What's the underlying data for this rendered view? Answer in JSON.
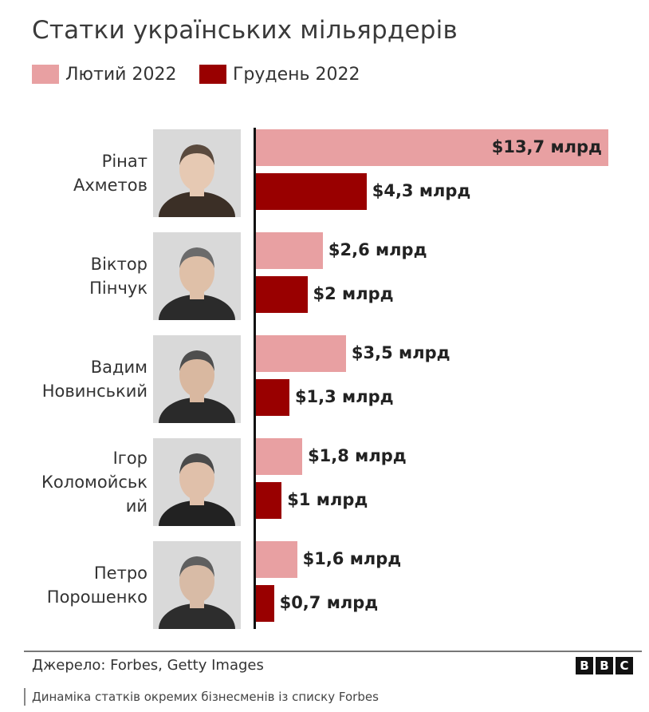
{
  "colors": {
    "feb": "#e8a0a2",
    "dec": "#990000",
    "photo_bg": "#d9d9d9"
  },
  "legend": [
    {
      "label": "Лютий 2022"
    },
    {
      "label": "Грудень 2022"
    }
  ],
  "footer": {
    "source": "Джерело: Forbes, Getty Images",
    "logo": [
      "B",
      "B",
      "C"
    ]
  },
  "caption": "Динаміка статків окремих бізнесменів із списку Forbes",
  "chart_data": {
    "type": "bar",
    "orientation": "horizontal",
    "title": "Статки українських мільярдерів",
    "categories": [
      [
        "Рінат",
        "Ахметов"
      ],
      [
        "Віктор",
        "Пінчук"
      ],
      [
        "Вадим",
        "Новинський"
      ],
      [
        "Ігор",
        "Коломойськ",
        "ий"
      ],
      [
        "Петро",
        "Порошенко"
      ]
    ],
    "series": [
      {
        "name": "Лютий 2022",
        "values": [
          13.7,
          2.6,
          3.5,
          1.8,
          1.6
        ],
        "labels": [
          "$13,7 млрд",
          "$2,6 млрд",
          "$3,5 млрд",
          "$1,8 млрд",
          "$1,6 млрд"
        ]
      },
      {
        "name": "Грудень 2022",
        "values": [
          4.3,
          2,
          1.3,
          1,
          0.7
        ],
        "labels": [
          "$4,3 млрд",
          "$2 млрд",
          "$1,3 млрд",
          "$1 млрд",
          "$0,7 млрд"
        ]
      }
    ],
    "xlim": [
      0,
      13.7
    ],
    "grid": false,
    "legend_position": "top-left"
  }
}
